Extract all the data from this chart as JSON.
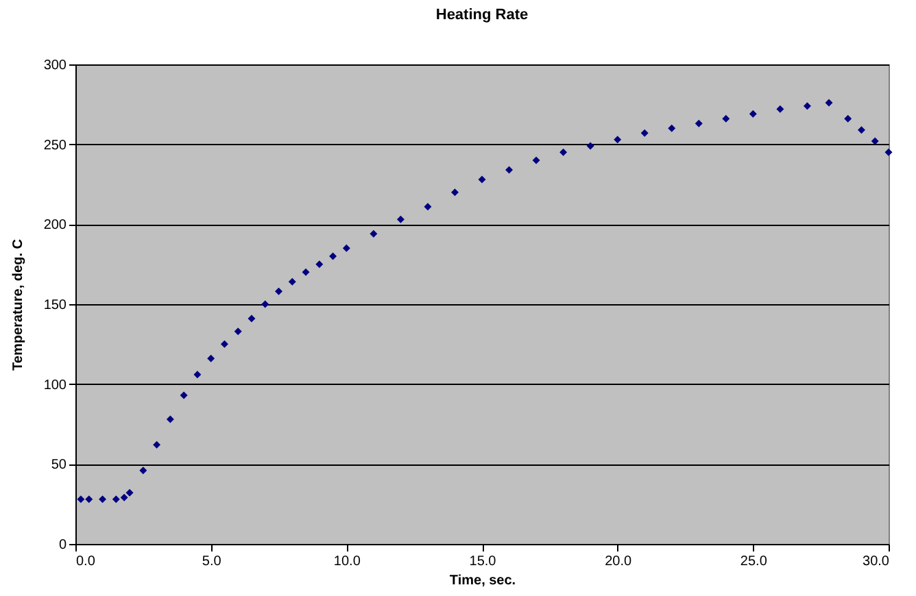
{
  "chart_data": {
    "type": "scatter",
    "title": "Heating Rate",
    "xlabel": "Time, sec.",
    "ylabel": "Temperature, deg. C",
    "x": [
      0.2,
      0.5,
      1.0,
      1.5,
      1.8,
      2.0,
      2.5,
      3.0,
      3.5,
      4.0,
      4.5,
      5.0,
      5.5,
      6.0,
      6.5,
      7.0,
      7.5,
      8.0,
      8.5,
      9.0,
      9.5,
      10,
      11,
      12,
      13,
      14,
      15,
      16,
      17,
      18,
      19,
      20,
      21,
      22,
      23,
      24,
      25,
      26,
      27,
      27.8,
      28.5,
      29,
      29.5,
      30
    ],
    "series": [
      {
        "color": "#000080",
        "values": [
          28,
          28,
          28,
          28,
          29,
          32,
          46,
          62,
          78,
          93,
          106,
          116,
          125,
          133,
          141,
          150,
          158,
          164,
          170,
          175,
          180,
          185,
          194,
          203,
          211,
          220,
          228,
          234,
          240,
          245,
          249,
          253,
          257,
          260,
          263,
          266,
          269,
          272,
          274,
          276,
          266,
          259,
          252,
          245
        ]
      }
    ],
    "xlim": [
      0,
      30
    ],
    "ylim": [
      0,
      300
    ],
    "xticks": [
      {
        "value": 0,
        "label": "0.0"
      },
      {
        "value": 5,
        "label": "5.0"
      },
      {
        "value": 10,
        "label": "10.0"
      },
      {
        "value": 15,
        "label": "15.0"
      },
      {
        "value": 20,
        "label": "20.0"
      },
      {
        "value": 25,
        "label": "25.0"
      },
      {
        "value": 30,
        "label": "30.0"
      }
    ],
    "yticks": [
      0,
      50,
      100,
      150,
      200,
      250,
      300
    ],
    "grid": "y",
    "marker": "diamond"
  }
}
